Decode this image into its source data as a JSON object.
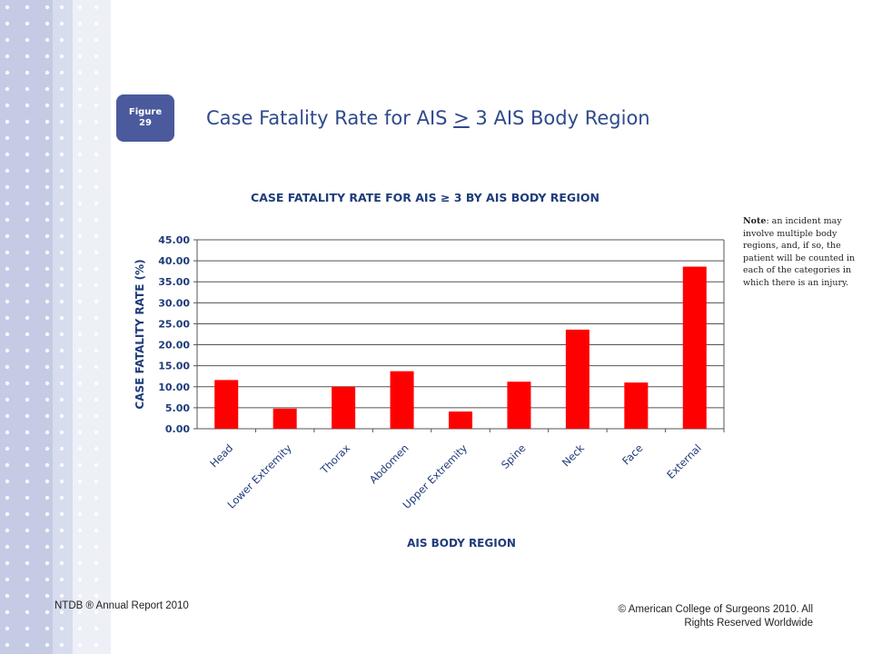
{
  "slide": {
    "figure_label": "Figure",
    "figure_number": "29",
    "title_prefix": "Case Fatality Rate for AIS ",
    "title_ge": ">",
    "title_suffix": " 3 AIS Body Region",
    "note_bold": "Note",
    "note_text": ": an incident may involve multiple body regions, and, if so, the patient will be counted in each of the categories in which there is an injury.",
    "footer_left": "NTDB ® Annual Report 2010",
    "footer_right_line1": "© American College of Surgeons 2010.  All",
    "footer_right_line2": "Rights Reserved Worldwide"
  },
  "colors": {
    "bar": "#ff0000",
    "chart_text": "#1f3c7a",
    "title_text": "#2f4a8c",
    "badge": "#4a5a9c"
  },
  "chart_data": {
    "type": "bar",
    "title": "CASE FATALITY RATE FOR AIS ≥ 3 BY AIS BODY REGION",
    "xlabel": "AIS BODY REGION",
    "ylabel": "CASE FATALITY RATE (%)",
    "categories": [
      "Head",
      "Lower Extremity",
      "Thorax",
      "Abdomen",
      "Upper Extremity",
      "Spine",
      "Neck",
      "Face",
      "External"
    ],
    "values": [
      11.6,
      4.8,
      10.0,
      13.7,
      4.1,
      11.2,
      23.6,
      11.0,
      38.6
    ],
    "ylim": [
      0,
      45
    ],
    "yticks": [
      "0.00",
      "5.00",
      "10.00",
      "15.00",
      "20.00",
      "25.00",
      "30.00",
      "35.00",
      "40.00",
      "45.00"
    ],
    "grid": true,
    "legend": "none"
  }
}
